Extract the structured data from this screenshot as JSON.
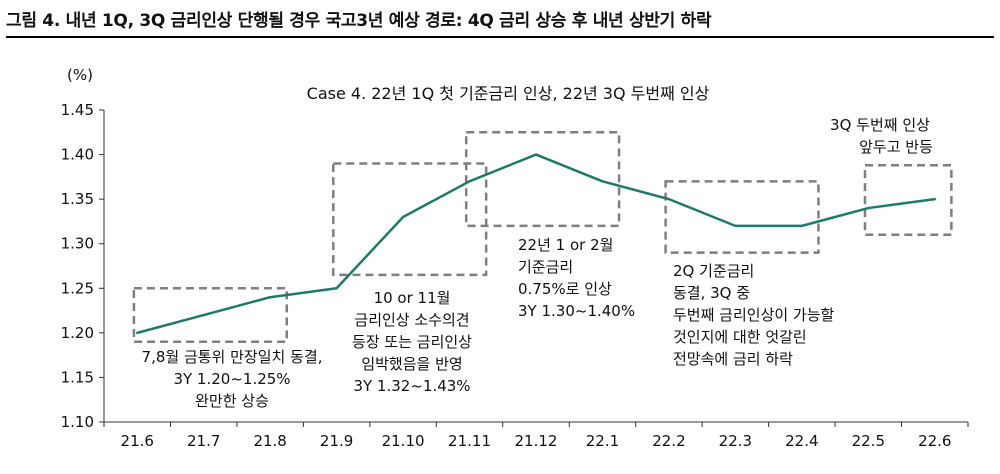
{
  "figure_title": "그림 4. 내년 1Q, 3Q 금리인상 단행될 경우 국고3년 예상 경로: 4Q 금리 상승 후 내년 상반기 하락",
  "chart_data": {
    "type": "line",
    "title": "Case 4. 22년 1Q 첫 기준금리 인상, 22년 3Q 두번째 인상",
    "y_unit": "(%)",
    "ylim": [
      1.1,
      1.45
    ],
    "y_ticks": [
      "1.10",
      "1.15",
      "1.20",
      "1.25",
      "1.30",
      "1.35",
      "1.40",
      "1.45"
    ],
    "categories": [
      "21.6",
      "21.7",
      "21.8",
      "21.9",
      "21.10",
      "21.11",
      "21.12",
      "22.1",
      "22.2",
      "22.3",
      "22.4",
      "22.5",
      "22.6"
    ],
    "series": [
      {
        "name": "",
        "color": "#1f7a6a",
        "values": [
          1.2,
          1.22,
          1.24,
          1.25,
          1.33,
          1.37,
          1.4,
          1.37,
          1.35,
          1.32,
          1.32,
          1.34,
          1.35
        ]
      }
    ],
    "grid": false,
    "annotations": [
      {
        "box": {
          "x_from": "21.6",
          "x_to": "21.8",
          "y_from": 1.19,
          "y_to": 1.25
        },
        "lines": [
          "7,8월 금통위 만장일치 동결,",
          "3Y 1.20~1.25%",
          "완만한 상승"
        ]
      },
      {
        "box": {
          "x_from": "21.9",
          "x_to": "21.11",
          "y_from": 1.265,
          "y_to": 1.39
        },
        "lines": [
          "10 or 11월",
          "금리인상 소수의견",
          "등장 또는 금리인상",
          "임박했음을 반영",
          "3Y 1.32~1.43%"
        ]
      },
      {
        "box": {
          "x_from": "21.11",
          "x_to": "22.1",
          "y_from": 1.32,
          "y_to": 1.425
        },
        "lines": [
          "22년 1 or 2월",
          "기준금리",
          "0.75%로 인상",
          "3Y 1.30~1.40%"
        ]
      },
      {
        "box": {
          "x_from": "22.2",
          "x_to": "22.4",
          "y_from": 1.29,
          "y_to": 1.37
        },
        "lines": [
          "2Q 기준금리",
          "동결, 3Q 중",
          "두번째 금리인상이 가능할",
          "것인지에 대한 엇갈린",
          "전망속에 금리 하락"
        ]
      },
      {
        "box": {
          "x_from": "22.5",
          "x_to": "22.6",
          "y_from": 1.31,
          "y_to": 1.388
        },
        "lines": [
          "3Q 두번째 인상",
          "앞두고 반등"
        ]
      }
    ]
  }
}
